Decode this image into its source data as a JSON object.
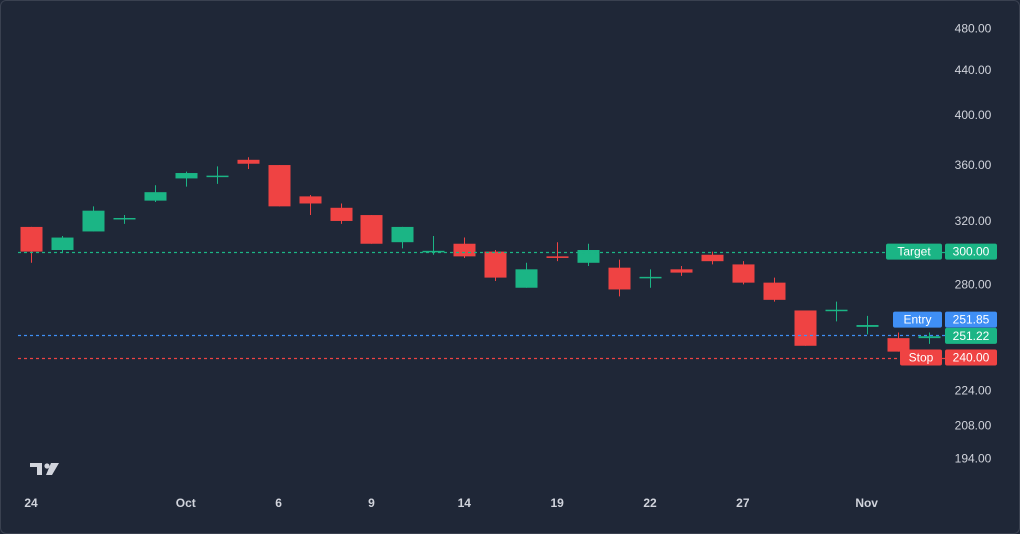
{
  "chart_data": {
    "type": "candlestick",
    "colors": {
      "background": "#1f2737",
      "up": "#1bb585",
      "down": "#ef4343",
      "entry": "#3f8ff5",
      "target": "#1bb585",
      "stop": "#ef4343",
      "axis_text": "#d1d4dc"
    },
    "y_axis": {
      "scale": "log",
      "range": [
        180,
        500
      ],
      "tick_labels": [
        "480.00",
        "440.00",
        "400.00",
        "360.00",
        "320.00",
        "280.00",
        "224.00",
        "208.00",
        "194.00"
      ]
    },
    "x_axis": {
      "tick_labels": [
        {
          "label": "24",
          "index": 0
        },
        {
          "label": "Oct",
          "index": 5
        },
        {
          "label": "6",
          "index": 8
        },
        {
          "label": "9",
          "index": 11
        },
        {
          "label": "14",
          "index": 14
        },
        {
          "label": "19",
          "index": 17
        },
        {
          "label": "22",
          "index": 20
        },
        {
          "label": "27",
          "index": 23
        },
        {
          "label": "Nov",
          "index": 27
        }
      ]
    },
    "candles": [
      {
        "o": 316,
        "h": 316,
        "c": 300,
        "l": 293
      },
      {
        "o": 301,
        "h": 310,
        "c": 309,
        "l": 299
      },
      {
        "o": 313,
        "h": 330,
        "c": 327,
        "l": 313
      },
      {
        "o": 321,
        "h": 324,
        "c": 322,
        "l": 318
      },
      {
        "o": 334,
        "h": 345,
        "c": 340,
        "l": 333
      },
      {
        "o": 350,
        "h": 355,
        "c": 354,
        "l": 344
      },
      {
        "o": 351,
        "h": 359,
        "c": 352,
        "l": 346
      },
      {
        "o": 364,
        "h": 366,
        "c": 361,
        "l": 357
      },
      {
        "o": 360,
        "h": 360,
        "c": 330,
        "l": 330
      },
      {
        "o": 337,
        "h": 338,
        "c": 332,
        "l": 324
      },
      {
        "o": 329,
        "h": 332,
        "c": 320,
        "l": 318
      },
      {
        "o": 324,
        "h": 324,
        "c": 305,
        "l": 305
      },
      {
        "o": 306,
        "h": 316,
        "c": 316,
        "l": 302
      },
      {
        "o": 300,
        "h": 310,
        "c": 300,
        "l": 298
      },
      {
        "o": 305,
        "h": 309,
        "c": 297,
        "l": 296
      },
      {
        "o": 300,
        "h": 301,
        "c": 284,
        "l": 282
      },
      {
        "o": 278,
        "h": 293,
        "c": 289,
        "l": 278
      },
      {
        "o": 297,
        "h": 306,
        "c": 296,
        "l": 294
      },
      {
        "o": 293,
        "h": 305,
        "c": 301,
        "l": 291
      },
      {
        "o": 290,
        "h": 295,
        "c": 277,
        "l": 273
      },
      {
        "o": 284,
        "h": 289,
        "c": 284,
        "l": 278
      },
      {
        "o": 289,
        "h": 291,
        "c": 287,
        "l": 285
      },
      {
        "o": 298,
        "h": 300,
        "c": 294,
        "l": 292
      },
      {
        "o": 292,
        "h": 294,
        "c": 281,
        "l": 280
      },
      {
        "o": 281,
        "h": 284,
        "c": 271,
        "l": 270
      },
      {
        "o": 265,
        "h": 265,
        "c": 246,
        "l": 246
      },
      {
        "o": 265,
        "h": 270,
        "c": 265,
        "l": 259
      },
      {
        "o": 256,
        "h": 262,
        "c": 257,
        "l": 252
      },
      {
        "o": 250,
        "h": 253,
        "c": 243,
        "l": 243
      },
      {
        "o": 250,
        "h": 253,
        "c": 251,
        "l": 247
      }
    ],
    "levels": [
      {
        "name": "Target",
        "price": 300,
        "label": "300.00"
      },
      {
        "name": "Entry",
        "price": 251.85,
        "label": "251.85"
      },
      {
        "name": "Stop",
        "price": 240,
        "label": "240.00"
      }
    ],
    "last_price": {
      "price": 251.22,
      "label": "251.22"
    }
  },
  "logo_text": "TV"
}
